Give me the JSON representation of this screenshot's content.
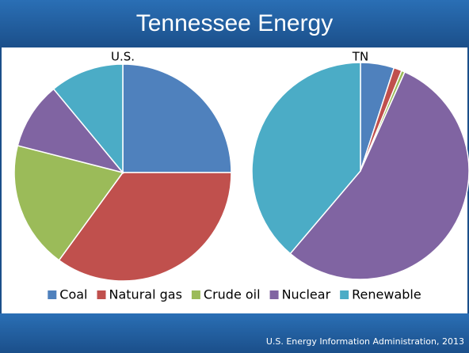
{
  "title": "Tennessee Energy",
  "source": "U.S. Energy Information Administration, 2013",
  "chart_data": [
    {
      "type": "pie",
      "title": "U.S.",
      "categories": [
        "Coal",
        "Natural gas",
        "Crude oil",
        "Nuclear",
        "Renewable"
      ],
      "values": [
        25,
        35,
        19,
        10,
        11
      ],
      "colors": [
        "#4f81bd",
        "#c0504d",
        "#9bbb59",
        "#8064a2",
        "#4bacc6"
      ]
    },
    {
      "type": "pie",
      "title": "TN",
      "categories": [
        "Coal",
        "Natural gas",
        "Crude oil",
        "Nuclear",
        "Renewable"
      ],
      "values": [
        5,
        1.2,
        0.5,
        54.5,
        38.8
      ],
      "colors": [
        "#4f81bd",
        "#c0504d",
        "#9bbb59",
        "#8064a2",
        "#4bacc6"
      ]
    }
  ]
}
